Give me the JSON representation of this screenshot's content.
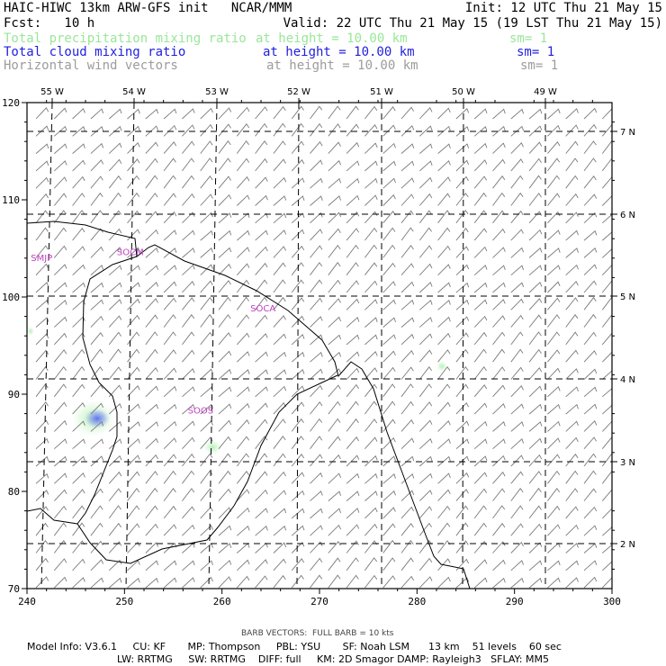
{
  "header": {
    "title": "HAIC-HIWC 13km ARW-GFS init   NCAR/MMM",
    "init": "Init: 12 UTC Thu 21 May 15",
    "fcst": "Fcst:   10 h",
    "valid": "Valid: 22 UTC Thu 21 May 15 (19 LST Thu 21 May 15)",
    "fields": [
      {
        "name": "Total precipitation mixing ratio",
        "height": "at height = 10.00 km",
        "sm": "sm= 1",
        "color": "#99e699"
      },
      {
        "name": "Total cloud mixing ratio",
        "height": "at height = 10.00 km",
        "sm": "sm= 1",
        "color": "#1f1fe0"
      },
      {
        "name": "Horizontal wind vectors",
        "height": "at height = 10.00 km",
        "sm": "sm= 1",
        "color": "#9c9c9c"
      }
    ]
  },
  "map": {
    "x_ticks": [
      "240",
      "250",
      "260",
      "270",
      "280",
      "290",
      "300"
    ],
    "y_ticks": [
      "70",
      "80",
      "90",
      "100",
      "110",
      "120"
    ],
    "lon_labels": [
      "55 W",
      "54 W",
      "53 W",
      "52 W",
      "51 W",
      "50 W",
      "49 W"
    ],
    "lat_labels": [
      "7 N",
      "6 N",
      "5 N",
      "4 N",
      "3 N",
      "2 N"
    ],
    "stations": [
      {
        "id": "SMJP",
        "x": 241.5,
        "y": 103.7
      },
      {
        "id": "SOCM",
        "x": 250.6,
        "y": 104.3
      },
      {
        "id": "SOCA",
        "x": 264.2,
        "y": 98.5
      },
      {
        "id": "SOOS",
        "x": 257.8,
        "y": 88.0
      }
    ],
    "station_color": "#c040c0"
  },
  "footer": {
    "barb": "BARB VECTORS:  FULL BARB = 10 kts",
    "model_line1": "Model Info: V3.6.1     CU: KF       MP: Thompson     PBL: YSU       SF: Noah LSM      13 km    51 levels    60 sec",
    "model_line2": "LW: RRTMG     SW: RRTMG    DIFF: full     KM: 2D Smagor DAMP: Rayleigh3   SFLAY: MM5"
  }
}
